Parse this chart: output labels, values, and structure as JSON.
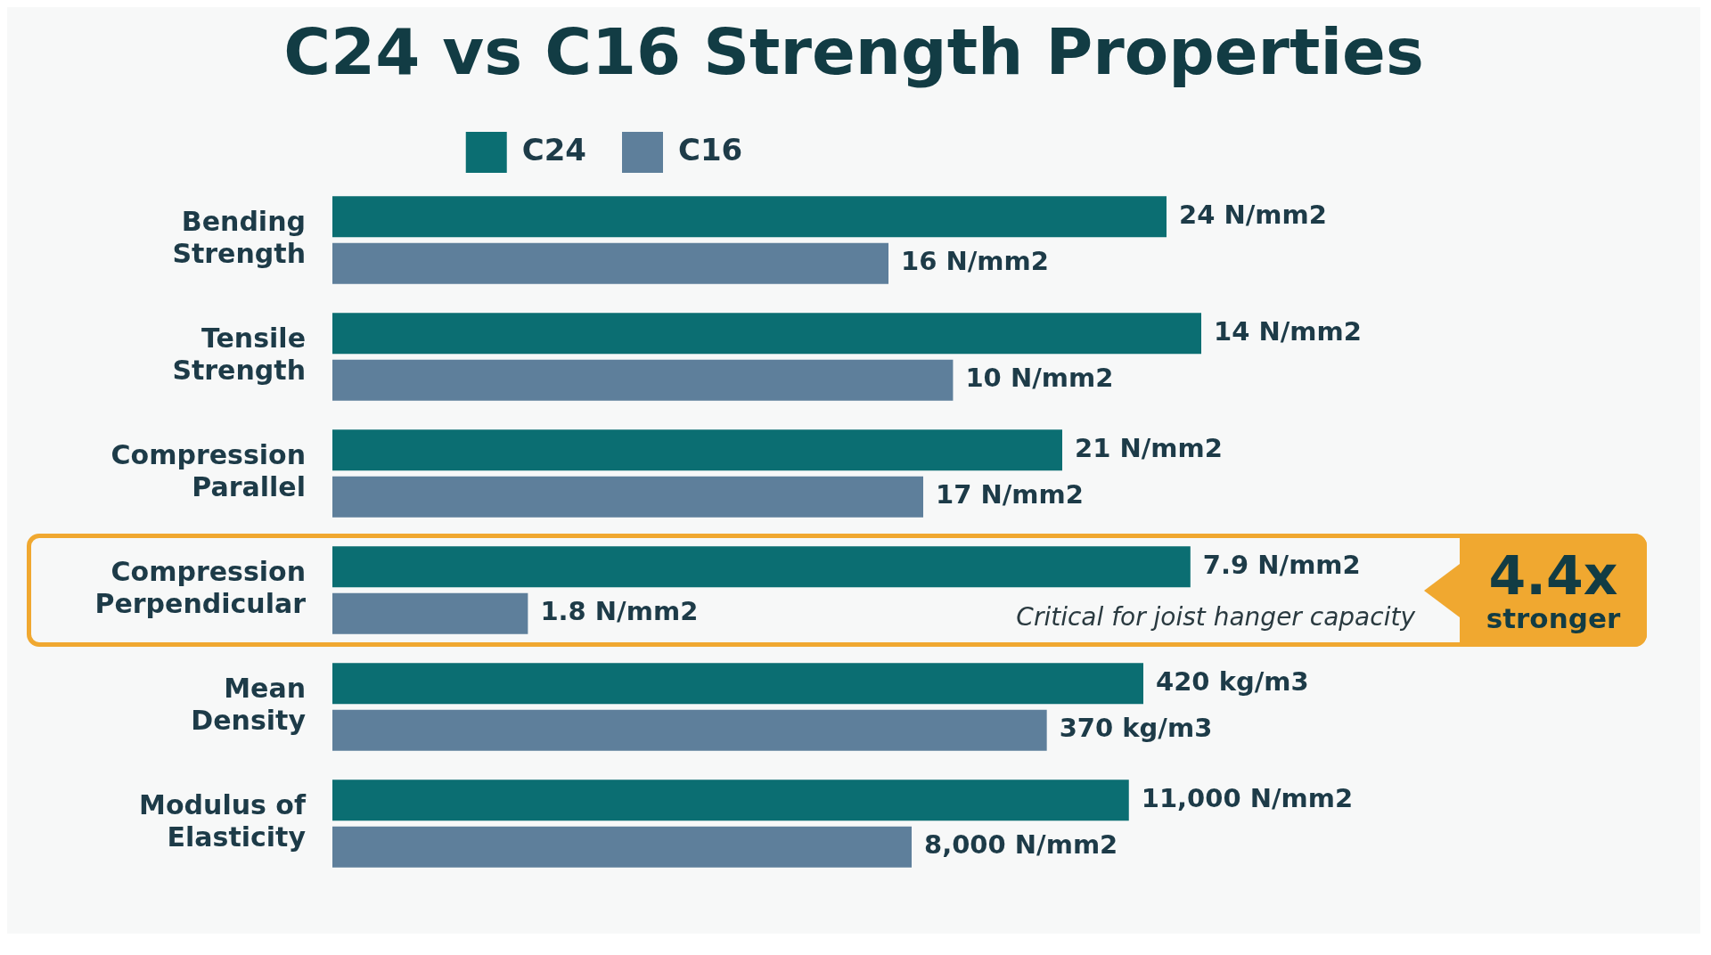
{
  "chart_data": [
    {
      "type": "bar",
      "orientation": "horizontal",
      "title": "C24 vs C16 Strength Properties",
      "legend": "top",
      "categories": [
        "Bending Strength"
      ],
      "tick_labels": "y",
      "series": [
        {
          "name": "C24",
          "color": "#0b6e72",
          "values": [
            24
          ],
          "value_labels": [
            "24 N/mm2"
          ]
        },
        {
          "name": "C16",
          "color": "#5e7f9b",
          "values": [
            16
          ],
          "value_labels": [
            "16 N/mm2"
          ]
        }
      ]
    },
    {
      "type": "bar",
      "orientation": "horizontal",
      "categories": [
        "Tensile Strength"
      ],
      "tick_labels": "y",
      "series": [
        {
          "color": "#0b6e72",
          "values": [
            14
          ],
          "value_labels": [
            "14 N/mm2"
          ]
        },
        {
          "color": "#5e7f9b",
          "values": [
            10
          ],
          "value_labels": [
            "10 N/mm2"
          ]
        }
      ]
    },
    {
      "type": "bar",
      "orientation": "horizontal",
      "categories": [
        "Compression Parallel"
      ],
      "tick_labels": "y",
      "series": [
        {
          "color": "#0b6e72",
          "values": [
            21
          ],
          "value_labels": [
            "21 N/mm2"
          ]
        },
        {
          "color": "#5e7f9b",
          "values": [
            17
          ],
          "value_labels": [
            "17 N/mm2"
          ]
        }
      ]
    },
    {
      "type": "bar",
      "orientation": "horizontal",
      "categories": [
        "Compression Perpendicular"
      ],
      "tick_labels": "y",
      "series": [
        {
          "color": "#0b6e72",
          "values": [
            7.9
          ],
          "value_labels": [
            "7.9 N/mm2"
          ]
        },
        {
          "color": "#5e7f9b",
          "values": [
            1.8
          ],
          "value_labels": [
            "1.8 N/mm2"
          ]
        }
      ],
      "annotations": [
        "Critical for joist hanger capacity",
        "4.4x stronger"
      ]
    },
    {
      "type": "bar",
      "orientation": "horizontal",
      "categories": [
        "Mean Density"
      ],
      "tick_labels": "y",
      "series": [
        {
          "color": "#0b6e72",
          "values": [
            420
          ],
          "value_labels": [
            "420 kg/m3"
          ]
        },
        {
          "color": "#5e7f9b",
          "values": [
            370
          ],
          "value_labels": [
            "370 kg/m3"
          ]
        }
      ]
    },
    {
      "type": "bar",
      "orientation": "horizontal",
      "categories": [
        "Modulus of Elasticity"
      ],
      "tick_labels": "y",
      "series": [
        {
          "color": "#0b6e72",
          "values": [
            11000
          ],
          "value_labels": [
            "11,000 N/mm2"
          ]
        },
        {
          "color": "#5e7f9b",
          "values": [
            8000
          ],
          "value_labels": [
            "8,000 N/mm2"
          ]
        }
      ]
    }
  ]
}
